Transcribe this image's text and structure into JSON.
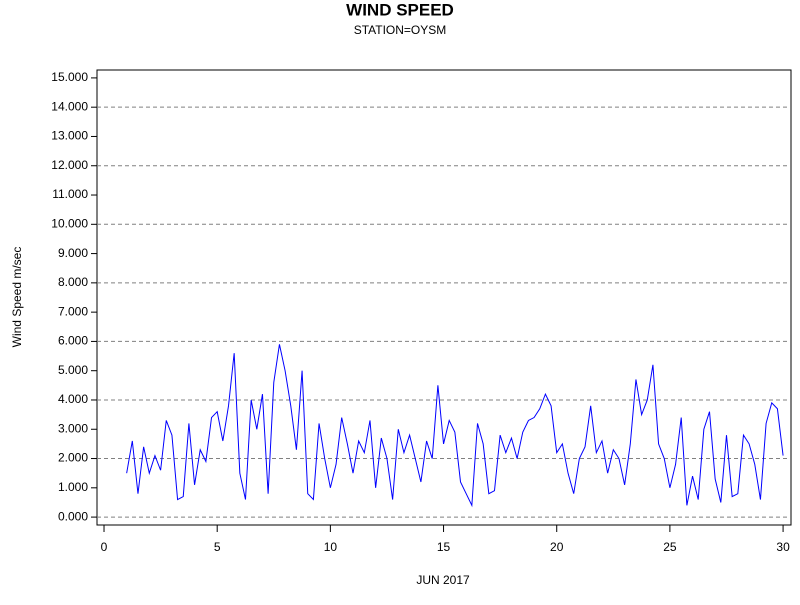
{
  "chart_data": {
    "type": "line",
    "title": "WIND SPEED",
    "subtitle": "STATION=OYSM",
    "ylabel": "Wind Speed m/sec",
    "xlabel": "JUN 2017",
    "color": "#0000ff",
    "xlim": [
      -0.31,
      30.35
    ],
    "xticks": [
      0,
      5,
      10,
      15,
      20,
      25,
      30
    ],
    "ylim": [
      -0.27,
      15.27
    ],
    "yticks": [
      {
        "value": 0,
        "label": "0.000"
      },
      {
        "value": 1,
        "label": "1.000"
      },
      {
        "value": 2,
        "label": "2.000"
      },
      {
        "value": 3,
        "label": "3.000"
      },
      {
        "value": 4,
        "label": "4.000"
      },
      {
        "value": 5,
        "label": "5.000"
      },
      {
        "value": 6,
        "label": "6.000"
      },
      {
        "value": 7,
        "label": "7.000"
      },
      {
        "value": 8,
        "label": "8.000"
      },
      {
        "value": 9,
        "label": "9.000"
      },
      {
        "value": 10,
        "label": "10.000"
      },
      {
        "value": 11,
        "label": "11.000"
      },
      {
        "value": 12,
        "label": "12.000"
      },
      {
        "value": 13,
        "label": "13.000"
      },
      {
        "value": 14,
        "label": "14.000"
      },
      {
        "value": 15,
        "label": "15.000"
      }
    ],
    "ygrid": [
      0,
      2,
      4,
      6,
      8,
      10,
      12,
      14
    ],
    "x": [
      1,
      1.25,
      1.5,
      1.75,
      2,
      2.25,
      2.5,
      2.75,
      3,
      3.25,
      3.5,
      3.75,
      4,
      4.25,
      4.5,
      4.75,
      5,
      5.25,
      5.5,
      5.75,
      6,
      6.25,
      6.5,
      6.75,
      7,
      7.25,
      7.5,
      7.75,
      8,
      8.25,
      8.5,
      8.75,
      9,
      9.25,
      9.5,
      9.75,
      10,
      10.25,
      10.5,
      10.75,
      11,
      11.25,
      11.5,
      11.75,
      12,
      12.25,
      12.5,
      12.75,
      13,
      13.25,
      13.5,
      13.75,
      14,
      14.25,
      14.5,
      14.75,
      15,
      15.25,
      15.5,
      15.75,
      16,
      16.25,
      16.5,
      16.75,
      17,
      17.25,
      17.5,
      17.75,
      18,
      18.25,
      18.5,
      18.75,
      19,
      19.25,
      19.5,
      19.75,
      20,
      20.25,
      20.5,
      20.75,
      21,
      21.25,
      21.5,
      21.75,
      22,
      22.25,
      22.5,
      22.75,
      23,
      23.25,
      23.5,
      23.75,
      24,
      24.25,
      24.5,
      24.75,
      25,
      25.25,
      25.5,
      25.75,
      26,
      26.25,
      26.5,
      26.75,
      27,
      27.25,
      27.5,
      27.75,
      28,
      28.25,
      28.5,
      28.75,
      29,
      29.25,
      29.5,
      29.75,
      30
    ],
    "values": [
      1.5,
      2.6,
      0.8,
      2.4,
      1.5,
      2.1,
      1.6,
      3.3,
      2.8,
      0.6,
      0.7,
      3.2,
      1.1,
      2.3,
      1.9,
      3.4,
      3.6,
      2.6,
      3.8,
      5.6,
      1.5,
      0.6,
      4.0,
      3.0,
      4.2,
      0.8,
      4.6,
      5.9,
      5.0,
      3.8,
      2.3,
      5.0,
      0.8,
      0.6,
      3.2,
      2.0,
      1.0,
      1.8,
      3.4,
      2.5,
      1.5,
      2.6,
      2.2,
      3.3,
      1.0,
      2.7,
      2.0,
      0.6,
      3.0,
      2.2,
      2.8,
      2.0,
      1.2,
      2.6,
      2.0,
      4.5,
      2.5,
      3.3,
      2.9,
      1.2,
      0.8,
      0.4,
      3.2,
      2.5,
      0.8,
      0.9,
      2.8,
      2.2,
      2.7,
      2.0,
      2.9,
      3.3,
      3.4,
      3.7,
      4.2,
      3.8,
      2.2,
      2.5,
      1.5,
      0.8,
      2.0,
      2.4,
      3.8,
      2.2,
      2.6,
      1.5,
      2.3,
      2.0,
      1.1,
      2.5,
      4.7,
      3.5,
      4.0,
      5.2,
      2.5,
      2.0,
      1.0,
      1.8,
      3.4,
      0.4,
      1.4,
      0.6,
      3.0,
      3.6,
      1.3,
      0.5,
      2.8,
      0.7,
      0.8,
      2.8,
      2.5,
      1.8,
      0.6,
      3.2,
      3.9,
      3.7,
      2.1
    ]
  }
}
